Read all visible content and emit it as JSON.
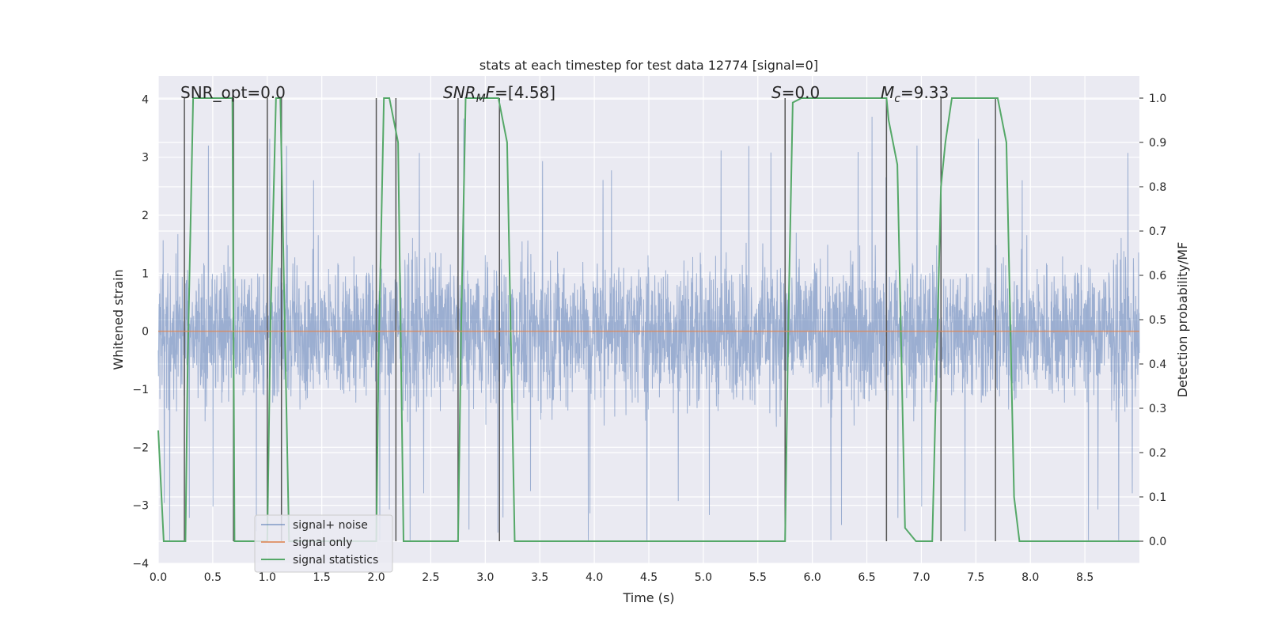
{
  "chart_data": {
    "type": "line",
    "title": "stats at each timestep for test data 12774 [signal=0]",
    "xlabel": "Time (s)",
    "ylabel": "Whitened strain",
    "y2label": "Detection probability/MF",
    "xlim": [
      0,
      9.0
    ],
    "ylim": [
      -4,
      4.4
    ],
    "y2lim": [
      -0.05,
      1.05
    ],
    "xticks": [
      "0.0",
      "0.5",
      "1.0",
      "1.5",
      "2.0",
      "2.5",
      "3.0",
      "3.5",
      "4.0",
      "4.5",
      "5.0",
      "5.5",
      "6.0",
      "6.5",
      "7.0",
      "7.5",
      "8.0",
      "8.5"
    ],
    "yticks": [
      "4",
      "3",
      "2",
      "1",
      "0",
      "−1",
      "−2",
      "−3",
      "−4"
    ],
    "y2ticks": [
      "1.0",
      "0.9",
      "0.8",
      "0.7",
      "0.6",
      "0.5",
      "0.4",
      "0.3",
      "0.2",
      "0.1",
      "0.0"
    ],
    "grid": true,
    "legend_position": "lower-left",
    "annotations": [
      {
        "text": "SNR_opt=0.0",
        "x": 0.2
      },
      {
        "text": "SNR_MF=[4.58]",
        "x": 2.6
      },
      {
        "text": "S=0.0",
        "x": 5.6
      },
      {
        "text": "M_c=9.33",
        "x": 6.6
      }
    ],
    "series": [
      {
        "name": "signal+ noise",
        "color": "#4c72b0",
        "axis": "left",
        "description_values": {
          "band": [
            -1.5,
            1.8
          ],
          "peaks": [
            -3.6,
            4.0
          ]
        }
      },
      {
        "name": "signal only",
        "color": "#dd8452",
        "axis": "left",
        "x": [
          0,
          9.0
        ],
        "y": [
          0,
          0
        ]
      },
      {
        "name": "signal statistics",
        "color": "#55a868",
        "axis": "right",
        "x": [
          0.0,
          0.05,
          0.25,
          0.27,
          0.32,
          0.4,
          0.68,
          0.7,
          0.8,
          1.0,
          1.03,
          1.08,
          1.1,
          1.12,
          1.2,
          1.3,
          2.0,
          2.02,
          2.07,
          2.12,
          2.2,
          2.25,
          2.75,
          2.78,
          2.82,
          3.12,
          3.2,
          3.27,
          5.75,
          5.78,
          5.82,
          5.9,
          6.68,
          6.7,
          6.78,
          6.85,
          6.95,
          7.1,
          7.18,
          7.22,
          7.28,
          7.65,
          7.7,
          7.78,
          7.85,
          7.9,
          9.0
        ],
        "y": [
          0.25,
          0.0,
          0.0,
          0.4,
          1.0,
          1.0,
          1.0,
          0.0,
          0.0,
          0.0,
          0.5,
          1.0,
          1.0,
          1.0,
          0.0,
          0.0,
          0.0,
          0.4,
          1.0,
          1.0,
          0.9,
          0.0,
          0.0,
          0.5,
          1.0,
          1.0,
          0.9,
          0.0,
          0.0,
          0.5,
          0.99,
          1.0,
          1.0,
          0.95,
          0.85,
          0.03,
          0.0,
          0.0,
          0.8,
          0.9,
          1.0,
          1.0,
          1.0,
          0.9,
          0.1,
          0.0,
          0.0
        ]
      }
    ],
    "vlines": [
      0.24,
      0.69,
      1.0,
      1.13,
      2.0,
      2.18,
      2.75,
      3.13,
      5.75,
      6.68,
      7.18,
      7.68
    ]
  }
}
